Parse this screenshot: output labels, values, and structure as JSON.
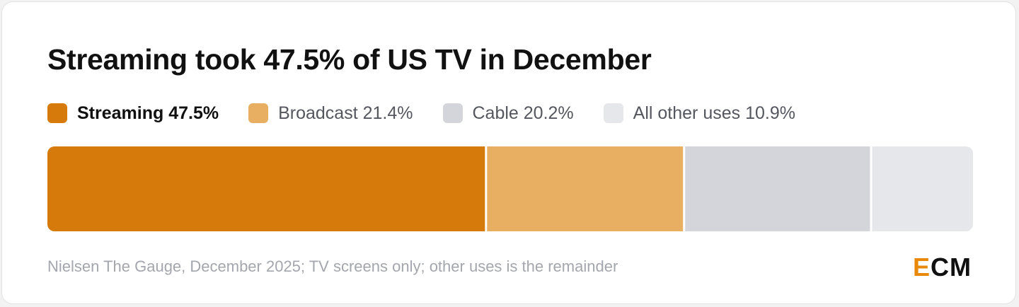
{
  "chart_data": {
    "type": "bar",
    "orientation": "horizontal-stacked-100",
    "title": "Streaming took 47.5% of US TV in December",
    "categories": [
      "Streaming",
      "Broadcast",
      "Cable",
      "All other uses"
    ],
    "values": [
      47.5,
      21.4,
      20.2,
      10.9
    ],
    "unit": "%",
    "legend": {
      "placement": "top-left",
      "entries": [
        "Streaming 47.5%",
        "Broadcast 21.4%",
        "Cable 20.2%",
        "All other uses 10.9%"
      ]
    },
    "colors": [
      "#d67b0b",
      "#e8ae62",
      "#d3d5db",
      "#e6e7ea"
    ],
    "grid": false,
    "source": "Nielsen The Gauge, December 2025; TV screens only; other uses is the remainder"
  },
  "logo": {
    "first": "E",
    "rest": "CM",
    "accent_color": "#e8890c"
  }
}
